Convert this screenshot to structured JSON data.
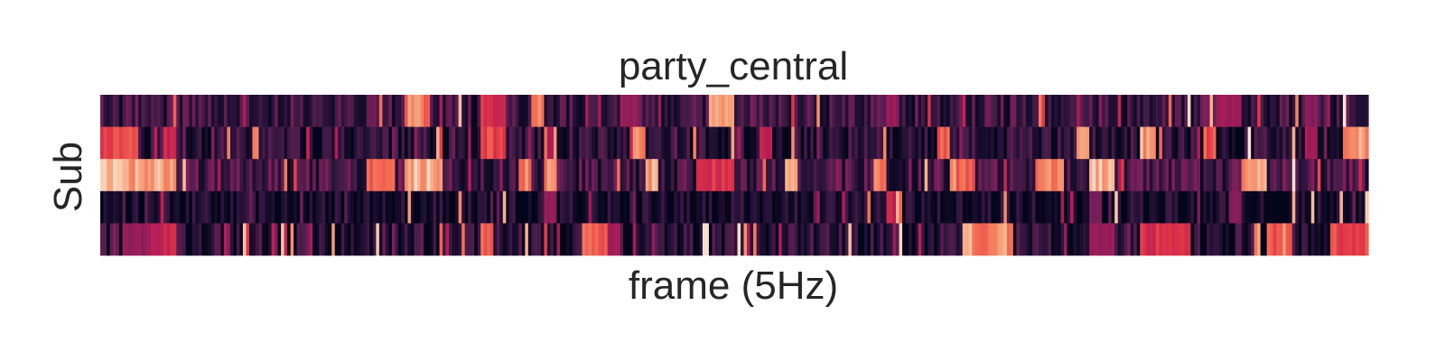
{
  "chart_data": {
    "type": "heatmap",
    "title": "party_central",
    "xlabel": "frame (5Hz)",
    "ylabel": "Sub",
    "rows": 5,
    "frames": 400,
    "show_ticks": false,
    "grid": false,
    "colorbar": false,
    "colormap": "rocket",
    "value_range": [
      0,
      1
    ],
    "row_values": [
      {
        "base": 0.22,
        "noise": 0.2,
        "bursts": [
          [
            0.24,
            0.26,
            0.9
          ],
          [
            0.245,
            0.255,
            0.95
          ],
          [
            0.3,
            0.32,
            0.75
          ],
          [
            0.34,
            0.35,
            0.85
          ],
          [
            0.41,
            0.425,
            0.55
          ],
          [
            0.48,
            0.5,
            0.95
          ],
          [
            0.62,
            0.63,
            0.55
          ],
          [
            0.88,
            0.9,
            0.6
          ],
          [
            0.95,
            0.96,
            0.5
          ]
        ]
      },
      {
        "base": 0.15,
        "noise": 0.2,
        "bursts": [
          [
            0.0,
            0.03,
            0.8
          ],
          [
            0.05,
            0.06,
            0.7
          ],
          [
            0.12,
            0.125,
            0.9
          ],
          [
            0.3,
            0.32,
            0.8
          ],
          [
            0.35,
            0.36,
            0.65
          ],
          [
            0.42,
            0.43,
            0.95
          ],
          [
            0.52,
            0.53,
            0.7
          ],
          [
            0.66,
            0.67,
            0.85
          ],
          [
            0.77,
            0.78,
            0.9
          ],
          [
            0.82,
            0.83,
            0.95
          ],
          [
            0.87,
            0.88,
            0.85
          ],
          [
            0.95,
            0.96,
            0.6
          ],
          [
            0.98,
            1.0,
            0.95
          ]
        ]
      },
      {
        "base": 0.25,
        "noise": 0.22,
        "bursts": [
          [
            0.0,
            0.06,
            0.98
          ],
          [
            0.21,
            0.23,
            0.85
          ],
          [
            0.24,
            0.27,
            0.98
          ],
          [
            0.33,
            0.34,
            0.9
          ],
          [
            0.35,
            0.36,
            0.95
          ],
          [
            0.43,
            0.44,
            0.95
          ],
          [
            0.47,
            0.5,
            0.75
          ],
          [
            0.54,
            0.55,
            0.98
          ],
          [
            0.61,
            0.62,
            0.9
          ],
          [
            0.67,
            0.69,
            0.85
          ],
          [
            0.74,
            0.76,
            0.92
          ],
          [
            0.78,
            0.8,
            0.98
          ],
          [
            0.9,
            0.92,
            0.95
          ]
        ]
      },
      {
        "base": 0.08,
        "noise": 0.18,
        "bursts": [
          [
            0.35,
            0.36,
            0.55
          ],
          [
            0.62,
            0.63,
            0.7
          ],
          [
            0.78,
            0.79,
            0.45
          ],
          [
            0.89,
            0.9,
            0.5
          ]
        ]
      },
      {
        "base": 0.14,
        "noise": 0.22,
        "bursts": [
          [
            0.02,
            0.04,
            0.55
          ],
          [
            0.04,
            0.06,
            0.7
          ],
          [
            0.3,
            0.31,
            0.9
          ],
          [
            0.38,
            0.4,
            0.85
          ],
          [
            0.4,
            0.41,
            0.6
          ],
          [
            0.68,
            0.72,
            0.92
          ],
          [
            0.78,
            0.8,
            0.55
          ],
          [
            0.82,
            0.86,
            0.75
          ],
          [
            0.92,
            0.94,
            0.85
          ],
          [
            0.97,
            1.0,
            0.8
          ]
        ]
      }
    ]
  }
}
